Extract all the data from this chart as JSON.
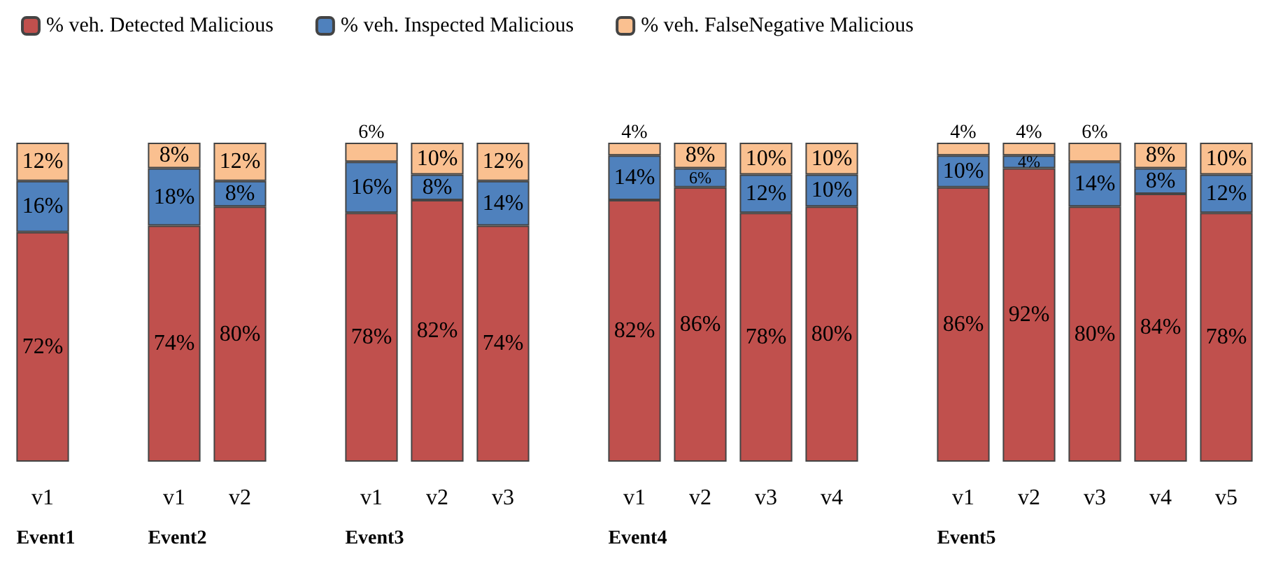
{
  "chart_data": {
    "type": "bar",
    "stacked": true,
    "legend": "top",
    "tick_labels": "x",
    "categories": [
      "v1",
      null,
      "v1",
      "v2",
      null,
      "v1",
      "v2",
      "v3",
      null,
      "v1",
      "v2",
      "v3",
      "v4",
      null,
      "v1",
      "v2",
      "v3",
      "v4",
      "v5"
    ],
    "series": [
      {
        "name": "% veh. Detected Malicious",
        "color": "#c0504d",
        "values": [
          72,
          null,
          74,
          80,
          null,
          78,
          82,
          74,
          null,
          82,
          86,
          78,
          80,
          null,
          86,
          92,
          80,
          84,
          78
        ],
        "value_labels": [
          "72%",
          null,
          "74%",
          "80%",
          null,
          "78%",
          "82%",
          "74%",
          null,
          "82%",
          "86%",
          "78%",
          "80%",
          null,
          "86%",
          "92%",
          "80%",
          "84%",
          "78%"
        ]
      },
      {
        "name": "% veh. Inspected Malicious",
        "color": "#4f81bd",
        "values": [
          16,
          null,
          18,
          8,
          null,
          16,
          8,
          14,
          null,
          14,
          6,
          12,
          10,
          null,
          10,
          4,
          14,
          8,
          12
        ],
        "value_labels": [
          "16%",
          null,
          "18%",
          "8%",
          null,
          "16%",
          "8%",
          "14%",
          null,
          "14%",
          "6%",
          "12%",
          "10%",
          null,
          "10%",
          "4%",
          "14%",
          "8%",
          "12%"
        ]
      },
      {
        "name": "% veh. FalseNegative Malicious",
        "color": "#fac090",
        "values": [
          12,
          null,
          8,
          12,
          null,
          6,
          10,
          12,
          null,
          4,
          8,
          10,
          10,
          null,
          4,
          4,
          6,
          8,
          10
        ],
        "value_labels": [
          "12%",
          null,
          "8%",
          "12%",
          null,
          "6%",
          "10%",
          "12%",
          null,
          "4%",
          "8%",
          "10%",
          "10%",
          null,
          "4%",
          "4%",
          "6%",
          "8%",
          "10%"
        ]
      }
    ],
    "annotations": [
      "Event1",
      "Event2",
      "Event3",
      "Event4",
      "Event5"
    ]
  }
}
